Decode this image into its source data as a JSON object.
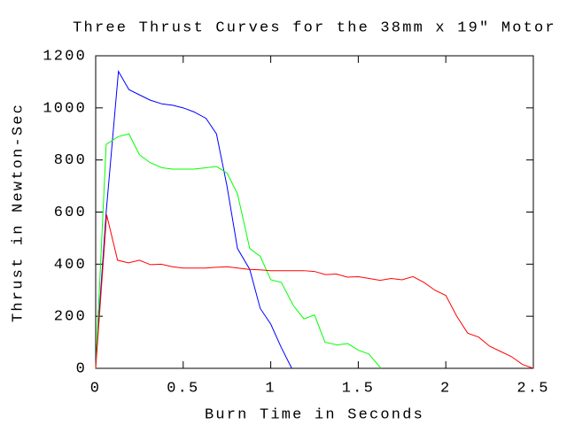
{
  "chart_data": {
    "type": "line",
    "title": "Three Thrust Curves for the 38mm x 19\" Motor",
    "x_label": "Burn Time in Seconds",
    "y_label": "Thrust in Newton-Sec",
    "xlim": [
      0,
      2.5
    ],
    "xticks": [
      0,
      0.5,
      1,
      1.5,
      2,
      2.5
    ],
    "ylim": [
      0,
      1200
    ],
    "yticks": [
      0,
      200,
      400,
      600,
      800,
      1000,
      1200
    ],
    "series": [
      {
        "color": "#0000ff",
        "x": [
          0,
          0.06,
          0.13,
          0.19,
          0.25,
          0.31,
          0.38,
          0.44,
          0.5,
          0.56,
          0.63,
          0.69,
          0.75,
          0.81,
          0.88,
          0.94,
          1.0,
          1.06,
          1.12
        ],
        "values": [
          20,
          600,
          1140,
          1070,
          1050,
          1030,
          1015,
          1010,
          1000,
          985,
          960,
          900,
          700,
          460,
          380,
          230,
          170,
          80,
          0
        ]
      },
      {
        "color": "#00ff00",
        "x": [
          0,
          0.06,
          0.13,
          0.19,
          0.25,
          0.31,
          0.38,
          0.44,
          0.5,
          0.56,
          0.63,
          0.69,
          0.75,
          0.81,
          0.88,
          0.94,
          1.0,
          1.06,
          1.13,
          1.19,
          1.25,
          1.31,
          1.38,
          1.44,
          1.5,
          1.56,
          1.63
        ],
        "values": [
          0,
          860,
          890,
          900,
          820,
          790,
          770,
          765,
          765,
          765,
          770,
          775,
          750,
          670,
          460,
          430,
          340,
          330,
          240,
          190,
          205,
          100,
          90,
          95,
          70,
          55,
          0
        ]
      },
      {
        "color": "#ff0000",
        "x": [
          0,
          0.0625,
          0.125,
          0.1875,
          0.25,
          0.3125,
          0.375,
          0.4375,
          0.5,
          0.5625,
          0.625,
          0.6875,
          0.75,
          0.8125,
          0.875,
          0.9375,
          1,
          1.0625,
          1.125,
          1.1875,
          1.25,
          1.3125,
          1.375,
          1.4375,
          1.5,
          1.5625,
          1.625,
          1.6875,
          1.75,
          1.8125,
          1.875,
          1.9375,
          2,
          2.0625,
          2.125,
          2.1875,
          2.25,
          2.3125,
          2.375,
          2.4375,
          2.5
        ],
        "values": [
          0,
          590,
          415,
          405,
          415,
          398,
          400,
          390,
          385,
          385,
          385,
          388,
          390,
          385,
          380,
          378,
          375,
          375,
          375,
          375,
          372,
          360,
          362,
          350,
          352,
          345,
          338,
          345,
          340,
          352,
          330,
          300,
          280,
          200,
          135,
          120,
          85,
          65,
          45,
          15,
          0
        ]
      }
    ]
  }
}
